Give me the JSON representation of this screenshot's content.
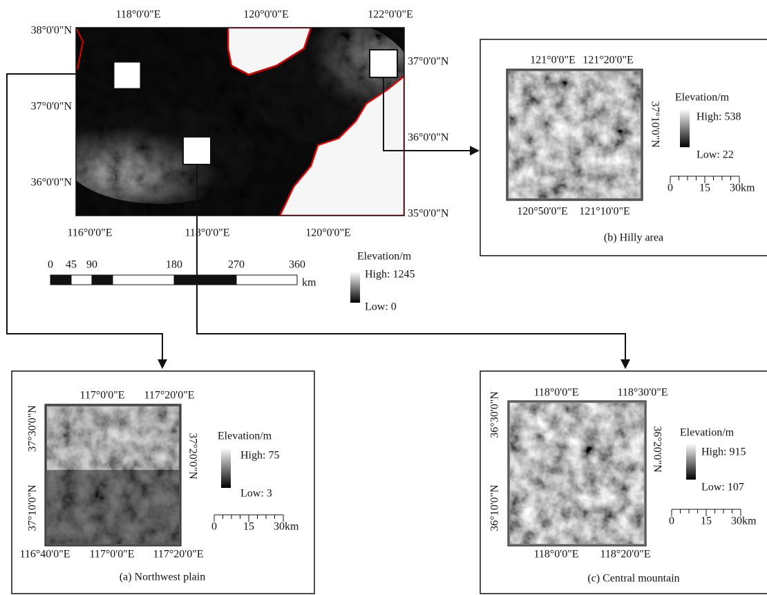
{
  "main_map": {
    "top_labels": [
      "118°0'0\"E",
      "120°0'0\"E",
      "122°0'0\"E"
    ],
    "bottom_labels": [
      "116°0'0\"E",
      "118°0'0\"E",
      "120°0'0\"E"
    ],
    "left_labels": [
      "38°0'0\"N",
      "37°0'0\"N",
      "36°0'0\"N"
    ],
    "right_labels": [
      "37°0'0\"N",
      "36°0'0\"N",
      "35°0'0\"N"
    ],
    "scale": {
      "ticks": [
        "0",
        "45",
        "90",
        "180",
        "270",
        "360"
      ],
      "unit": "km"
    },
    "legend": {
      "title": "Elevation/m",
      "high": "High: 1245",
      "low": "Low: 0"
    }
  },
  "insets": [
    {
      "caption": "(a) Northwest plain",
      "top_labels": [
        "117°0'0\"E",
        "117°20'0\"E"
      ],
      "bottom_labels": [
        "116°40'0\"E",
        "117°0'0\"E",
        "117°20'0\"E"
      ],
      "left_labels": [
        "37°30'0\"N",
        "37°10'0\"N"
      ],
      "right_labels": [
        "37°20'0\"N"
      ],
      "legend": {
        "title": "Elevation/m",
        "high": "High: 75",
        "low": "Low: 3"
      },
      "scale": {
        "ticks": [
          "0",
          "15",
          "30"
        ],
        "unit": "km"
      }
    },
    {
      "caption": "(b) Hilly area",
      "top_labels": [
        "121°0'0\"E",
        "121°20'0\"E"
      ],
      "bottom_labels": [
        "120°50'0\"E",
        "121°10'0\"E"
      ],
      "left_labels": [],
      "right_labels": [
        "37°10'0\"N"
      ],
      "legend": {
        "title": "Elevation/m",
        "high": "High: 538",
        "low": "Low: 22"
      },
      "scale": {
        "ticks": [
          "0",
          "15",
          "30"
        ],
        "unit": "km"
      }
    },
    {
      "caption": "(c) Central mountain",
      "top_labels": [
        "118°0'0\"E",
        "118°30'0\"E"
      ],
      "bottom_labels": [
        "118°0'0\"E",
        "118°20'0\"E"
      ],
      "left_labels": [
        "36°30'0\"N",
        "36°10'0\"N"
      ],
      "right_labels": [
        "36°20'0\"N"
      ],
      "legend": {
        "title": "Elevation/m",
        "high": "High: 915",
        "low": "Low: 107"
      },
      "scale": {
        "ticks": [
          "0",
          "15",
          "30"
        ],
        "unit": "km"
      }
    }
  ]
}
